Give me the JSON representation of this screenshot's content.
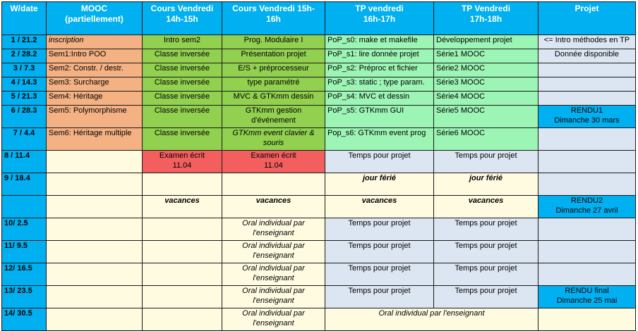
{
  "header": {
    "week": "W/date",
    "mooc_l1": "MOOC",
    "mooc_l2": "(partiellement)",
    "cv1_l1": "Cours Vendredi",
    "cv1_l2": "14h-15h",
    "cv2_l1": "Cours Vendredi 15h-",
    "cv2_l2": "16h",
    "tp1_l1": "TP vendredi",
    "tp1_l2": "16h-17h",
    "tp2_l1": "TP Vendredi",
    "tp2_l2": "17h-18h",
    "projet": "Projet"
  },
  "rows": {
    "r1": {
      "week": "1 / 21.2",
      "mooc": "inscription",
      "cv1": "Intro sem2",
      "cv2": "Prog. Modulaire I",
      "tp1": "PoP_s0: make et makefile",
      "tp2": "Développement projet",
      "projet": "<= Intro méthodes en TP"
    },
    "r2": {
      "week": "2 / 28.2",
      "mooc": "Sem1:Intro POO",
      "cv1": "Classe inversée",
      "cv2": "Présentation projet",
      "tp1": "PoP_s1: lire donnée projet",
      "tp2": "Série1 MOOC",
      "projet": "Donnée disponible"
    },
    "r3": {
      "week": "3 / 7.3",
      "mooc": "Sem2: Constr. / destr.",
      "cv1": "Classe inversée",
      "cv2": "E/S + préprocesseur",
      "tp1": "PoP_s2: Préproc et fichier",
      "tp2": "Série2 MOOC",
      "projet": ""
    },
    "r4": {
      "week": "4 / 14.3",
      "mooc": "Sem3: Surcharge",
      "cv1": "Classe inversée",
      "cv2": "type paramétré",
      "tp1": "PoP_s3: static ; type param.",
      "tp2": "Série3 MOOC",
      "projet": ""
    },
    "r5": {
      "week": "5 / 21.3",
      "mooc": "Sem4: Héritage",
      "cv1": "Classe inversée",
      "cv2": "MVC & GTKmm dessin",
      "tp1": "PoP_s4: MVC et dessin",
      "tp2": "Série4 MOOC",
      "projet": ""
    },
    "r6": {
      "week": "6 / 28.3",
      "mooc": "Sem5: Polymorphisme",
      "cv1": "Classe inversée",
      "cv2_l1": "GTKmm gestion",
      "cv2_l2": "d'événement",
      "tp1": "PoP_s5: GTKmm GUI",
      "tp2": "Série5 MOOC",
      "projet_l1": "RENDU1",
      "projet_l2": "Dimanche 30 mars"
    },
    "r7": {
      "week": "7 / 4.4",
      "mooc": "Sem6: Héritage multiple",
      "cv1": "Classe inversée",
      "cv2_l1": "GTKmm event clavier  &",
      "cv2_l2": "souris",
      "tp1": "Pop_s6: GTKmm event prog",
      "tp2": "Série6 MOOC",
      "projet": ""
    },
    "r8": {
      "week": "8 / 11.4",
      "cv1_l1": "Examen écrit",
      "cv1_l2": "11.04",
      "cv2_l1": "Examen écrit",
      "cv2_l2": "11.04",
      "tp1": "Temps pour projet",
      "tp2": "Temps pour projet"
    },
    "r9": {
      "week": "9 / 18.4",
      "tp1": "jour férié",
      "tp2": "jour férié"
    },
    "r10": {
      "week": "",
      "cv1": "vacances",
      "cv2": "vacances",
      "tp1": "vacances",
      "tp2": "vacances",
      "projet_l1": "RENDU2",
      "projet_l2": "Dimanche 27 avril"
    },
    "r11": {
      "week": "10/  2.5",
      "cv2_l1": "Oral individual par",
      "cv2_l2": "l'enseignant",
      "tp1": "Temps pour projet",
      "tp2": "Temps pour projet"
    },
    "r12": {
      "week": "11/ 9.5",
      "cv2_l1": "Oral individual par",
      "cv2_l2": "l'enseignant",
      "tp1": "Temps pour projet",
      "tp2": "Temps pour projet"
    },
    "r13": {
      "week": "12/ 16.5",
      "cv2_l1": "Oral individual par",
      "cv2_l2": "l'enseignant",
      "tp1": "Temps pour projet",
      "tp2": "Temps pour projet"
    },
    "r14": {
      "week": "13/ 23.5",
      "cv2_l1": "Oral individual par",
      "cv2_l2": "l'enseignant",
      "tp1": "Temps pour projet",
      "tp2": "Temps pour projet",
      "projet_l1": "RENDU final",
      "projet_l2": "Dimanche 25 mai"
    },
    "r15": {
      "week": "14/ 30.5",
      "cv2_l1": "Oral individual par",
      "cv2_l2": "l'enseignant",
      "tp_merged": "Oral individual par l'enseignant"
    }
  }
}
